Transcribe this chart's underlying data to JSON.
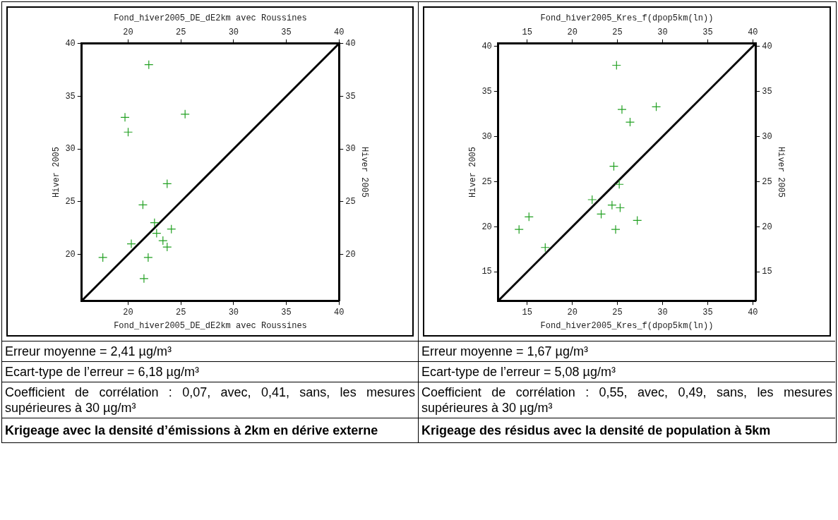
{
  "chart_data": [
    {
      "type": "scatter",
      "title": "Krigeage avec la densité d’émissions à 2km en dérive externe",
      "xlabel": "Fond_hiver2005_DE_dE2km avec Roussines",
      "x2label": "Fond_hiver2005_DE_dE2km avec Roussines",
      "ylabel": "Hiver 2005",
      "y2label": "Hiver 2005",
      "xlim": [
        15.6,
        40
      ],
      "xticks": [
        20,
        25,
        30,
        35,
        40
      ],
      "x2lim": [
        15.6,
        40
      ],
      "x2ticks": [
        20,
        25,
        30,
        35,
        40
      ],
      "ylim": [
        15.6,
        40
      ],
      "yticks": [
        20,
        25,
        30,
        35,
        40
      ],
      "y2lim": [
        15.6,
        40
      ],
      "y2ticks": [
        20,
        25,
        30,
        35,
        40
      ],
      "series": [
        {
          "type": "scatter",
          "marker": "cross",
          "color": "#22a022",
          "x": [
            21.96,
            19.7,
            20.0,
            25.4,
            23.7,
            21.4,
            22.5,
            22.7,
            24.1,
            23.3,
            23.7,
            20.3,
            17.6,
            21.9,
            21.5
          ],
          "values": [
            38.0,
            33.0,
            31.6,
            33.3,
            26.7,
            24.7,
            23.0,
            22.0,
            22.4,
            21.3,
            20.7,
            21.0,
            19.7,
            19.7,
            17.7
          ]
        },
        {
          "type": "line",
          "marker": "none",
          "color": "#000000",
          "x": [
            15.6,
            40
          ],
          "values": [
            15.6,
            40
          ]
        }
      ],
      "annotations": [
        "Erreur moyenne = 2,41 µg/m³",
        "Ecart-type de l’erreur = 6,18 µg/m³",
        "Coefficient de corrélation : 0,07, avec, 0,41, sans, les mesures supérieures à 30 µg/m³"
      ]
    },
    {
      "type": "scatter",
      "title": "Krigeage des résidus avec la densité de population à 5km",
      "xlabel": "Fond_hiver2005_Kres_f(dpop5km(ln))",
      "x2label": "Fond_hiver2005_Kres_f(dpop5km(ln))",
      "ylabel": "Hiver 2005",
      "y2label": "Hiver 2005",
      "xlim": [
        11.8,
        40.3
      ],
      "xticks": [
        15,
        20,
        25,
        30,
        35,
        40
      ],
      "x2lim": [
        11.8,
        40.3
      ],
      "x2ticks": [
        15,
        20,
        25,
        30,
        35,
        40
      ],
      "ylim": [
        11.8,
        40.3
      ],
      "yticks": [
        15,
        20,
        25,
        30,
        35,
        40
      ],
      "y2lim": [
        11.8,
        40.3
      ],
      "y2ticks": [
        15,
        20,
        25,
        30,
        35,
        40
      ],
      "series": [
        {
          "type": "scatter",
          "marker": "cross",
          "color": "#22a022",
          "x": [
            24.9,
            25.5,
            26.4,
            29.3,
            24.6,
            25.2,
            22.2,
            24.4,
            25.3,
            23.2,
            27.2,
            15.2,
            14.1,
            24.8,
            17.0
          ],
          "values": [
            37.9,
            33.0,
            31.6,
            33.3,
            26.7,
            24.7,
            23.0,
            22.4,
            22.1,
            21.4,
            20.7,
            21.1,
            19.7,
            19.7,
            17.7
          ]
        },
        {
          "type": "line",
          "marker": "none",
          "color": "#000000",
          "x": [
            11.8,
            40.3
          ],
          "values": [
            11.8,
            40.3
          ]
        }
      ],
      "annotations": [
        "Erreur moyenne = 1,67 µg/m³",
        "Ecart-type de l’erreur = 5,08 µg/m³",
        "Coefficient de corrélation : 0,55, avec, 0,49, sans, les mesures supérieures à 30 µg/m³"
      ]
    }
  ]
}
